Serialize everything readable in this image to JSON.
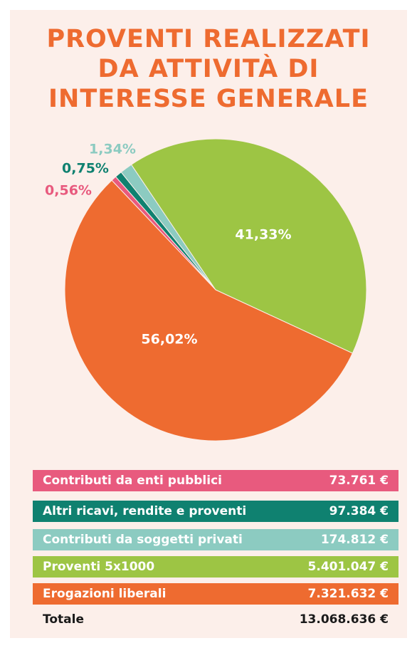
{
  "chart_data": {
    "type": "pie",
    "title": [
      "PROVENTI REALIZZATI",
      "DA ATTIVITÀ DI",
      "INTERESSE GENERALE"
    ],
    "categories": [
      "Contributi da enti pubblici",
      "Altri ricavi, rendite e proventi",
      "Contributi da soggetti privati",
      "Proventi 5x1000",
      "Erogazioni liberali"
    ],
    "values": [
      0.56,
      0.75,
      1.34,
      41.33,
      56.02
    ],
    "value_labels": [
      "0,56%",
      "0,75%",
      "1,34%",
      "41,33%",
      "56,02%"
    ],
    "colors": [
      "#e85a7e",
      "#0f8170",
      "#8ccbc1",
      "#9dc544",
      "#ee6b30"
    ],
    "amounts": [
      "73.761 €",
      "97.384 €",
      "174.812 €",
      "5.401.047 €",
      "7.321.632 €"
    ],
    "total_label": "Totale",
    "total": "13.068.636 €"
  }
}
